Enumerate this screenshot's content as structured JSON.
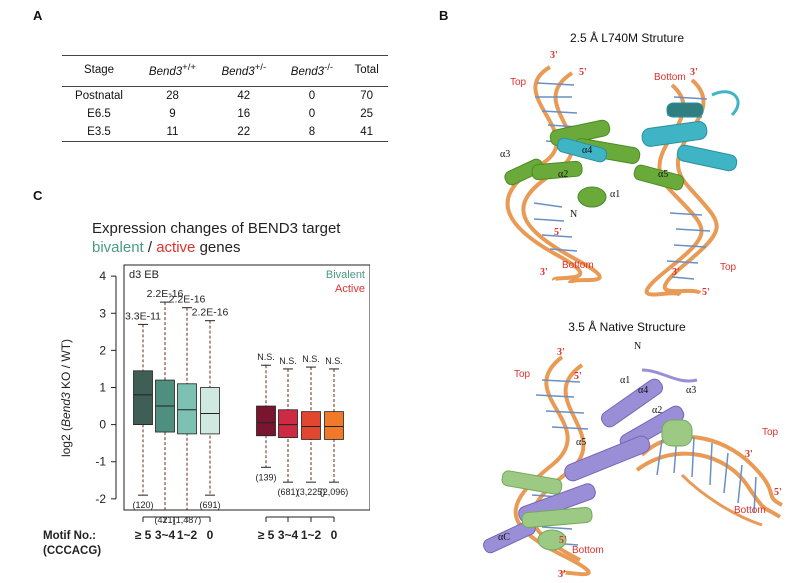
{
  "panels": {
    "a": "A",
    "b": "B",
    "c": "C"
  },
  "table": {
    "headers": {
      "stage": "Stage",
      "wt": "Bend3",
      "wt_sup": "+/+",
      "het": "Bend3",
      "het_sup": "+/-",
      "ko": "Bend3",
      "ko_sup": "-/-",
      "total": "Total"
    },
    "rows": [
      {
        "stage": "Postnatal",
        "wt": "28",
        "het": "42",
        "ko": "0",
        "total": "70"
      },
      {
        "stage": "E6.5",
        "wt": "9",
        "het": "16",
        "ko": "0",
        "total": "25"
      },
      {
        "stage": "E3.5",
        "wt": "11",
        "het": "22",
        "ko": "8",
        "total": "41"
      }
    ]
  },
  "structures": {
    "top_title": "2.5 Å L740M Struture",
    "bottom_title": "3.5 Å Native Structure",
    "top_labels": {
      "three1": "3'",
      "five1": "5'",
      "top1": "Top",
      "bottom1": "Bottom",
      "three2": "3'",
      "a3": "α3",
      "a4": "α4",
      "a2": "α2",
      "a5": "α5",
      "a1": "α1",
      "n": "N",
      "five2": "5'",
      "three3": "3'",
      "bottom2": "Bottom",
      "three4": "3'",
      "top2": "Top",
      "five3": "5'"
    },
    "bottom_labels": {
      "three1": "3'",
      "top1": "Top",
      "five1": "5'",
      "n": "N",
      "a1": "α1",
      "a4": "α4",
      "a3": "α3",
      "a2": "α2",
      "a5": "α5",
      "top2": "Top",
      "three2": "3'",
      "five2": "5'",
      "bottom1": "Bottom",
      "ac": "αC",
      "five3": "5'",
      "bottom2": "Bottom",
      "three3": "3'"
    }
  },
  "chart_data": {
    "type": "box",
    "title_line1": "Expression changes of BEND3 target",
    "title_bivalent": "bivalent",
    "title_sep": " / ",
    "title_active": "active",
    "title_end": " genes",
    "panel_tag": "d3 EB",
    "legend_bivalent": "Bivalent",
    "legend_active": "Active",
    "ylabel_pre": "log2 (",
    "ylabel_gene": "Bend3",
    "ylabel_post": " KO / WT)",
    "ylim": [
      -2.3,
      4.3
    ],
    "yticks": [
      "-2",
      "-1",
      "0",
      "1",
      "2",
      "3",
      "4"
    ],
    "xlabel_line1": "Motif No.:",
    "xlabel_line2": "(CCCACG)",
    "categories": [
      "≥ 5",
      "3~4",
      "1~2",
      "0",
      "≥ 5",
      "3~4",
      "1~2",
      "0"
    ],
    "colors": {
      "bivalent": [
        "#3f5e55",
        "#4f8f80",
        "#7cc1b2",
        "#cfe9e1"
      ],
      "active": [
        "#7a1530",
        "#cc2b43",
        "#e2462f",
        "#f07a2a"
      ],
      "bivalent_text": "#4a9a85",
      "active_text": "#e0312d"
    },
    "series": [
      {
        "name": "Bivalent",
        "boxes": [
          {
            "q1": 0.0,
            "median": 0.8,
            "q3": 1.45,
            "wlo": -1.9,
            "whi": 2.7,
            "pval": "3.3E-11",
            "n": "(120)"
          },
          {
            "q1": -0.2,
            "median": 0.5,
            "q3": 1.2,
            "wlo": -2.3,
            "whi": 3.3,
            "pval": "2.2E-16",
            "n": "(421)"
          },
          {
            "q1": -0.25,
            "median": 0.4,
            "q3": 1.1,
            "wlo": -2.3,
            "whi": 3.15,
            "pval": "2.2E-16",
            "n": "(1,487)"
          },
          {
            "q1": -0.25,
            "median": 0.3,
            "q3": 1.0,
            "wlo": -1.9,
            "whi": 2.8,
            "pval": "2.2E-16",
            "n": "(691)"
          }
        ]
      },
      {
        "name": "Active",
        "boxes": [
          {
            "q1": -0.3,
            "median": 0.05,
            "q3": 0.5,
            "wlo": -1.15,
            "whi": 1.6,
            "pval": "N.S.",
            "n": "(139)"
          },
          {
            "q1": -0.35,
            "median": 0.0,
            "q3": 0.4,
            "wlo": -1.55,
            "whi": 1.5,
            "pval": "N.S.",
            "n": "(681)"
          },
          {
            "q1": -0.4,
            "median": -0.05,
            "q3": 0.35,
            "wlo": -1.55,
            "whi": 1.55,
            "pval": "N.S.",
            "n": "(3,225)"
          },
          {
            "q1": -0.4,
            "median": -0.05,
            "q3": 0.35,
            "wlo": -1.55,
            "whi": 1.5,
            "pval": "N.S.",
            "n": "(2,096)"
          }
        ]
      }
    ]
  }
}
